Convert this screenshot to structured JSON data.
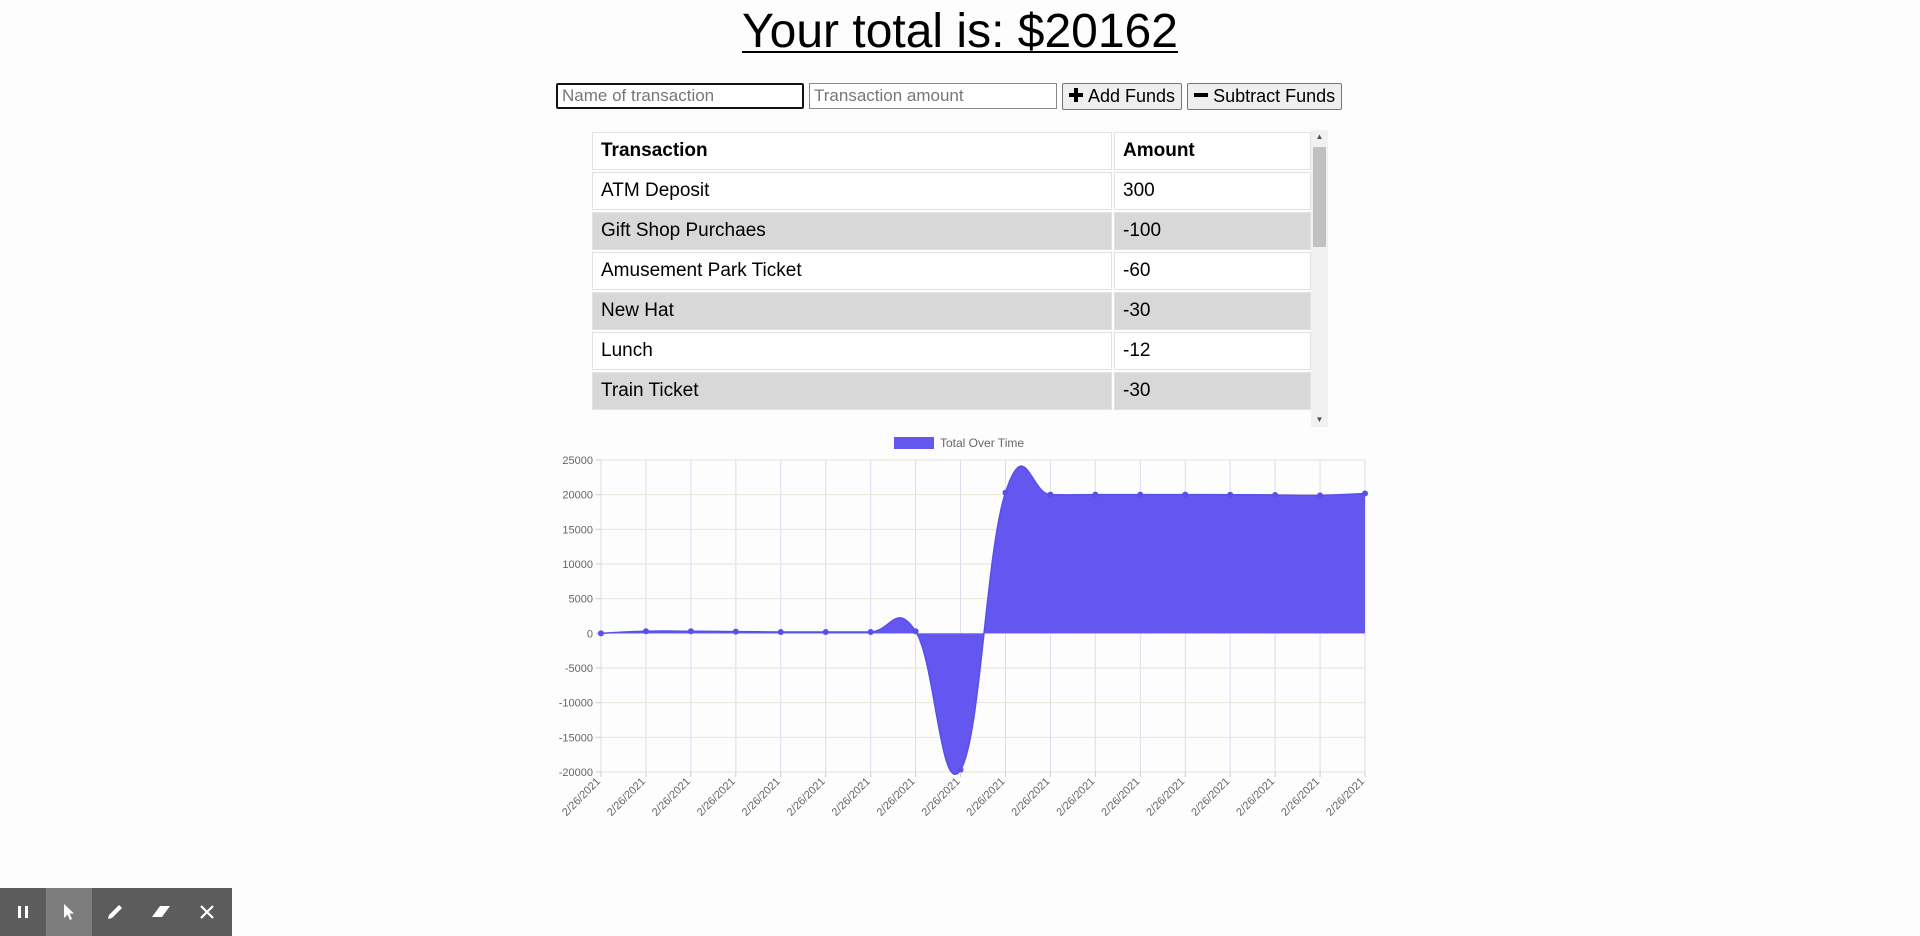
{
  "header": {
    "total_label": "Your total is: $",
    "total_value": "20162"
  },
  "form": {
    "name_placeholder": "Name of transaction",
    "amount_placeholder": "Transaction amount",
    "add_label": "Add Funds",
    "subtract_label": "Subtract Funds",
    "add_icon": "plus-icon",
    "subtract_icon": "minus-icon"
  },
  "table": {
    "headers": [
      "Transaction",
      "Amount"
    ],
    "rows": [
      {
        "name": "ATM Deposit",
        "amount": "300"
      },
      {
        "name": "Gift Shop Purchaes",
        "amount": "-100"
      },
      {
        "name": "Amusement Park Ticket",
        "amount": "-60"
      },
      {
        "name": "New Hat",
        "amount": "-30"
      },
      {
        "name": "Lunch",
        "amount": "-12"
      },
      {
        "name": "Train Ticket",
        "amount": "-30"
      }
    ]
  },
  "toolbar": {
    "tools": [
      "pause-icon",
      "pointer-icon",
      "pen-icon",
      "eraser-icon",
      "close-icon"
    ],
    "active": "pointer-icon"
  },
  "chart_data": {
    "type": "area",
    "title": "",
    "legend": "Total Over Time",
    "legend_position": "top",
    "fill_color": "#6357f0",
    "x": [
      "2/26/2021",
      "2/26/2021",
      "2/26/2021",
      "2/26/2021",
      "2/26/2021",
      "2/26/2021",
      "2/26/2021",
      "2/26/2021",
      "2/26/2021",
      "2/26/2021",
      "2/26/2021",
      "2/26/2021",
      "2/26/2021",
      "2/26/2021",
      "2/26/2021",
      "2/26/2021",
      "2/26/2021",
      "2/26/2021"
    ],
    "series": [
      {
        "name": "Total Over Time",
        "values": [
          0,
          300,
          300,
          250,
          200,
          200,
          200,
          300,
          -19700,
          20300,
          20000,
          20000,
          20000,
          20000,
          19990,
          19960,
          19900,
          20162
        ]
      }
    ],
    "ylim": [
      -20000,
      25000
    ],
    "yticks": [
      25000,
      20000,
      15000,
      10000,
      5000,
      0,
      -5000,
      -10000,
      -15000,
      -20000
    ],
    "grid": true
  }
}
